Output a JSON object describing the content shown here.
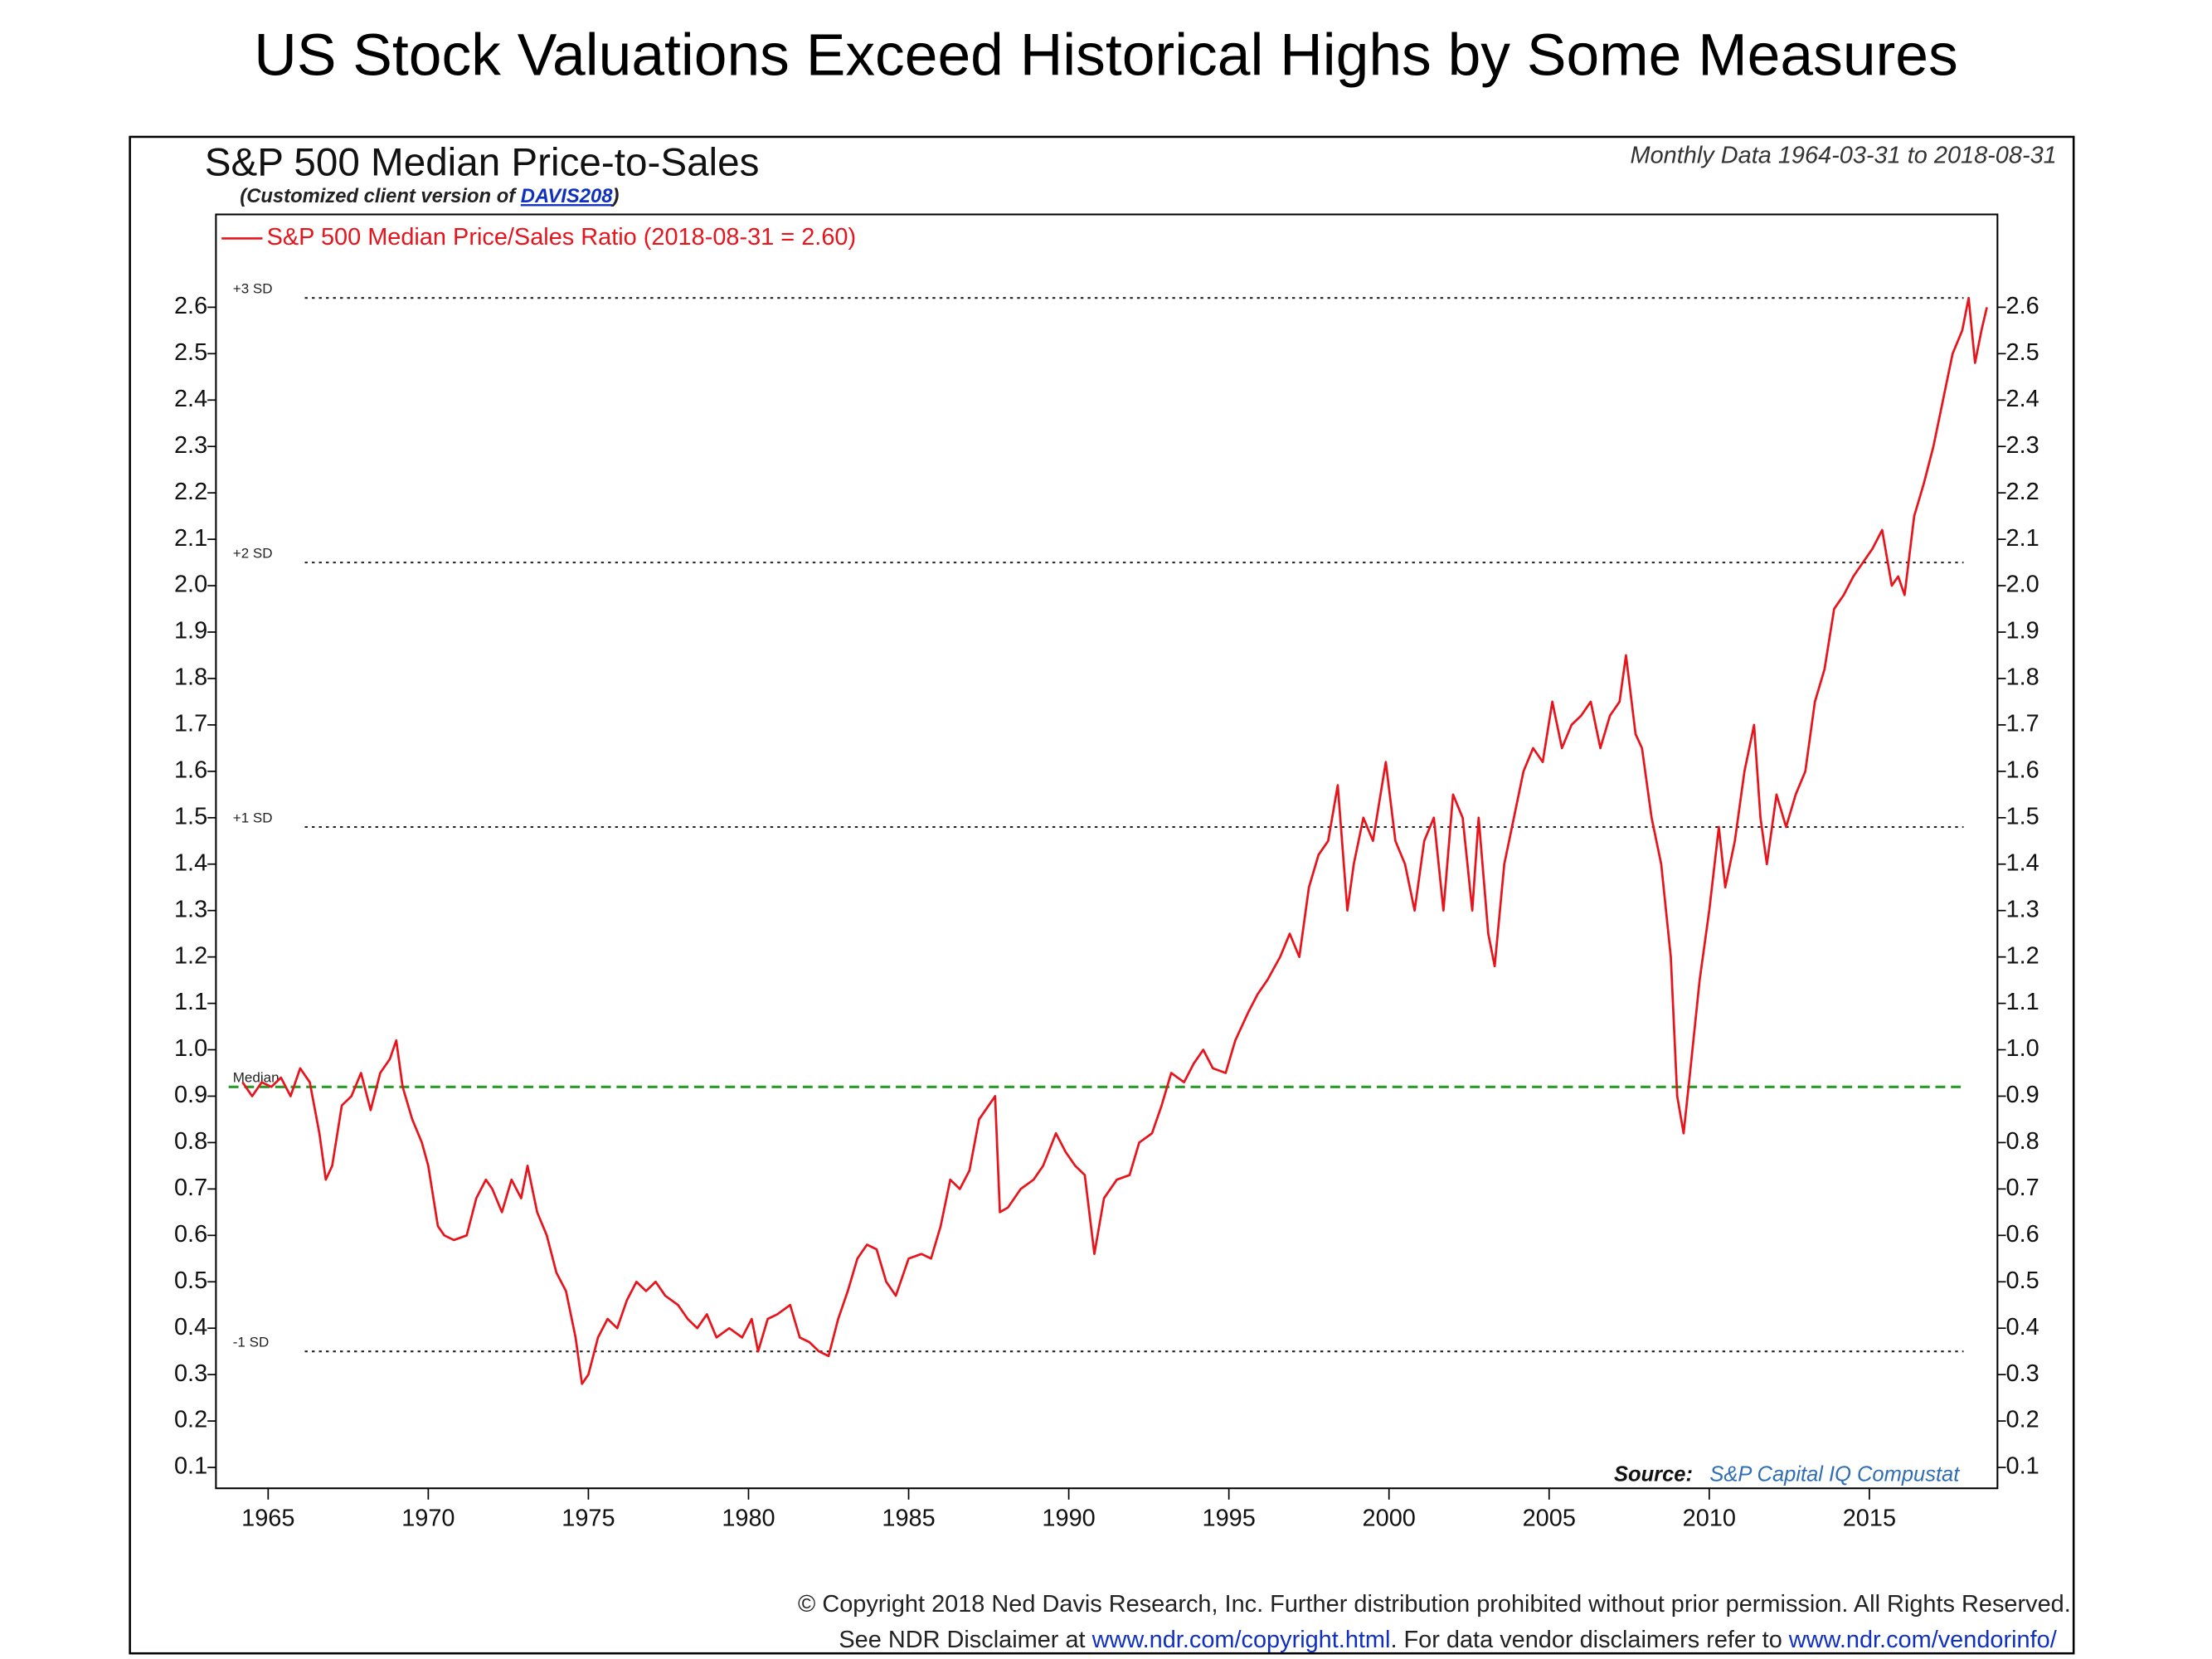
{
  "title": "US Stock Valuations Exceed Historical Highs by Some Measures",
  "chart_data": {
    "type": "line",
    "title": "S&P 500 Median Price-to-Sales",
    "subtitle": {
      "before": "(Customized client version of ",
      "link": "DAVIS208",
      "after": ")"
    },
    "date_range": "Monthly Data 1964-03-31 to 2018-08-31",
    "legend": "top-left",
    "grid": false,
    "x": [
      1964.2,
      1964.5,
      1964.8,
      1965.1,
      1965.4,
      1965.7,
      1966.0,
      1966.3,
      1966.6,
      1966.8,
      1967.0,
      1967.3,
      1967.6,
      1967.9,
      1968.2,
      1968.5,
      1968.8,
      1969.0,
      1969.2,
      1969.5,
      1969.8,
      1970.0,
      1970.3,
      1970.5,
      1970.8,
      1971.2,
      1971.5,
      1971.8,
      1972.0,
      1972.3,
      1972.6,
      1972.9,
      1973.1,
      1973.4,
      1973.7,
      1974.0,
      1974.3,
      1974.6,
      1974.8,
      1975.0,
      1975.3,
      1975.6,
      1975.9,
      1976.2,
      1976.5,
      1976.8,
      1977.1,
      1977.4,
      1977.8,
      1978.1,
      1978.4,
      1978.7,
      1979.0,
      1979.4,
      1979.8,
      1980.1,
      1980.3,
      1980.6,
      1980.9,
      1981.3,
      1981.6,
      1981.9,
      1982.2,
      1982.5,
      1982.8,
      1983.1,
      1983.4,
      1983.7,
      1984.0,
      1984.3,
      1984.6,
      1985.0,
      1985.4,
      1985.7,
      1986.0,
      1986.3,
      1986.6,
      1986.9,
      1987.2,
      1987.5,
      1987.7,
      1987.85,
      1988.1,
      1988.5,
      1988.9,
      1989.2,
      1989.6,
      1989.9,
      1990.2,
      1990.5,
      1990.8,
      1991.1,
      1991.5,
      1991.9,
      1992.2,
      1992.6,
      1992.9,
      1993.2,
      1993.6,
      1993.9,
      1994.2,
      1994.5,
      1994.9,
      1995.2,
      1995.6,
      1995.9,
      1996.2,
      1996.6,
      1996.9,
      1997.2,
      1997.5,
      1997.8,
      1998.1,
      1998.4,
      1998.7,
      1998.9,
      1999.2,
      1999.5,
      1999.9,
      2000.2,
      2000.5,
      2000.8,
      2001.1,
      2001.4,
      2001.7,
      2002.0,
      2002.3,
      2002.6,
      2002.8,
      2003.1,
      2003.3,
      2003.6,
      2003.9,
      2004.2,
      2004.5,
      2004.8,
      2005.1,
      2005.4,
      2005.7,
      2006.0,
      2006.3,
      2006.6,
      2006.9,
      2007.2,
      2007.4,
      2007.7,
      2007.9,
      2008.2,
      2008.5,
      2008.8,
      2009.0,
      2009.2,
      2009.4,
      2009.7,
      2010.0,
      2010.3,
      2010.5,
      2010.8,
      2011.1,
      2011.4,
      2011.6,
      2011.8,
      2012.1,
      2012.4,
      2012.7,
      2013.0,
      2013.3,
      2013.6,
      2013.9,
      2014.2,
      2014.5,
      2014.8,
      2015.1,
      2015.4,
      2015.7,
      2015.9,
      2016.1,
      2016.4,
      2016.7,
      2017.0,
      2017.3,
      2017.6,
      2017.9,
      2018.1,
      2018.3,
      2018.5,
      2018.67
    ],
    "series": [
      {
        "name": "S&P 500 Median Price/Sales Ratio (2018-08-31 = 2.60)",
        "color": "#e8141c",
        "values": [
          0.93,
          0.9,
          0.93,
          0.92,
          0.94,
          0.9,
          0.96,
          0.93,
          0.82,
          0.72,
          0.75,
          0.88,
          0.9,
          0.95,
          0.87,
          0.95,
          0.98,
          1.02,
          0.92,
          0.85,
          0.8,
          0.75,
          0.62,
          0.6,
          0.59,
          0.6,
          0.68,
          0.72,
          0.7,
          0.65,
          0.72,
          0.68,
          0.75,
          0.65,
          0.6,
          0.52,
          0.48,
          0.38,
          0.28,
          0.3,
          0.38,
          0.42,
          0.4,
          0.46,
          0.5,
          0.48,
          0.5,
          0.47,
          0.45,
          0.42,
          0.4,
          0.43,
          0.38,
          0.4,
          0.38,
          0.42,
          0.35,
          0.42,
          0.43,
          0.45,
          0.38,
          0.37,
          0.35,
          0.34,
          0.42,
          0.48,
          0.55,
          0.58,
          0.57,
          0.5,
          0.47,
          0.55,
          0.56,
          0.55,
          0.62,
          0.72,
          0.7,
          0.74,
          0.85,
          0.88,
          0.9,
          0.65,
          0.66,
          0.7,
          0.72,
          0.75,
          0.82,
          0.78,
          0.75,
          0.73,
          0.56,
          0.68,
          0.72,
          0.73,
          0.8,
          0.82,
          0.88,
          0.95,
          0.93,
          0.97,
          1.0,
          0.96,
          0.95,
          1.02,
          1.08,
          1.12,
          1.15,
          1.2,
          1.25,
          1.2,
          1.35,
          1.42,
          1.45,
          1.57,
          1.3,
          1.4,
          1.5,
          1.45,
          1.62,
          1.45,
          1.4,
          1.3,
          1.45,
          1.5,
          1.3,
          1.55,
          1.5,
          1.3,
          1.5,
          1.25,
          1.18,
          1.4,
          1.5,
          1.6,
          1.65,
          1.62,
          1.75,
          1.65,
          1.7,
          1.72,
          1.75,
          1.65,
          1.72,
          1.75,
          1.85,
          1.68,
          1.65,
          1.5,
          1.4,
          1.2,
          0.9,
          0.82,
          0.95,
          1.15,
          1.3,
          1.48,
          1.35,
          1.45,
          1.6,
          1.7,
          1.5,
          1.4,
          1.55,
          1.48,
          1.55,
          1.6,
          1.75,
          1.82,
          1.95,
          1.98,
          2.02,
          2.05,
          2.08,
          2.12,
          2.0,
          2.02,
          1.98,
          2.15,
          2.22,
          2.3,
          2.4,
          2.5,
          2.55,
          2.62,
          2.48,
          2.55,
          2.6
        ]
      }
    ],
    "reference_lines": [
      {
        "label": "+3 SD",
        "value": 2.62,
        "color": "#222222"
      },
      {
        "label": "+2 SD",
        "value": 2.05,
        "color": "#222222"
      },
      {
        "label": "+1 SD",
        "value": 1.48,
        "color": "#222222"
      },
      {
        "label": "Median",
        "value": 0.92,
        "color": "#2a9a2a"
      },
      {
        "label": "-1 SD",
        "value": 0.35,
        "color": "#222222"
      }
    ],
    "xlim": [
      1963.37,
      2019.0
    ],
    "xticks": [
      1965,
      1970,
      1975,
      1980,
      1985,
      1990,
      1995,
      2000,
      2005,
      2010,
      2015
    ],
    "ylim": [
      0.055,
      2.8
    ],
    "yticks": [
      0.1,
      0.2,
      0.3,
      0.4,
      0.5,
      0.6,
      0.7,
      0.8,
      0.9,
      {
        "value": 1,
        "label": "1.0"
      },
      1.1,
      1.2,
      1.3,
      1.4,
      1.5,
      1.6,
      1.7,
      1.8,
      1.9,
      {
        "value": 2,
        "label": "2.0"
      },
      2.1,
      2.2,
      2.3,
      2.4,
      2.5,
      2.6
    ],
    "source_label": "Source:",
    "source": "S&P Capital IQ Compustat"
  },
  "footer": {
    "copyright": "© Copyright 2018 Ned Davis Research, Inc. Further distribution prohibited without prior permission. All Rights Reserved.",
    "disclaimer": {
      "before": "See NDR Disclaimer at ",
      "link1": "www.ndr.com/copyright.html",
      "middle": ". For data vendor disclaimers refer to ",
      "link2": "www.ndr.com/vendorinfo/"
    }
  }
}
